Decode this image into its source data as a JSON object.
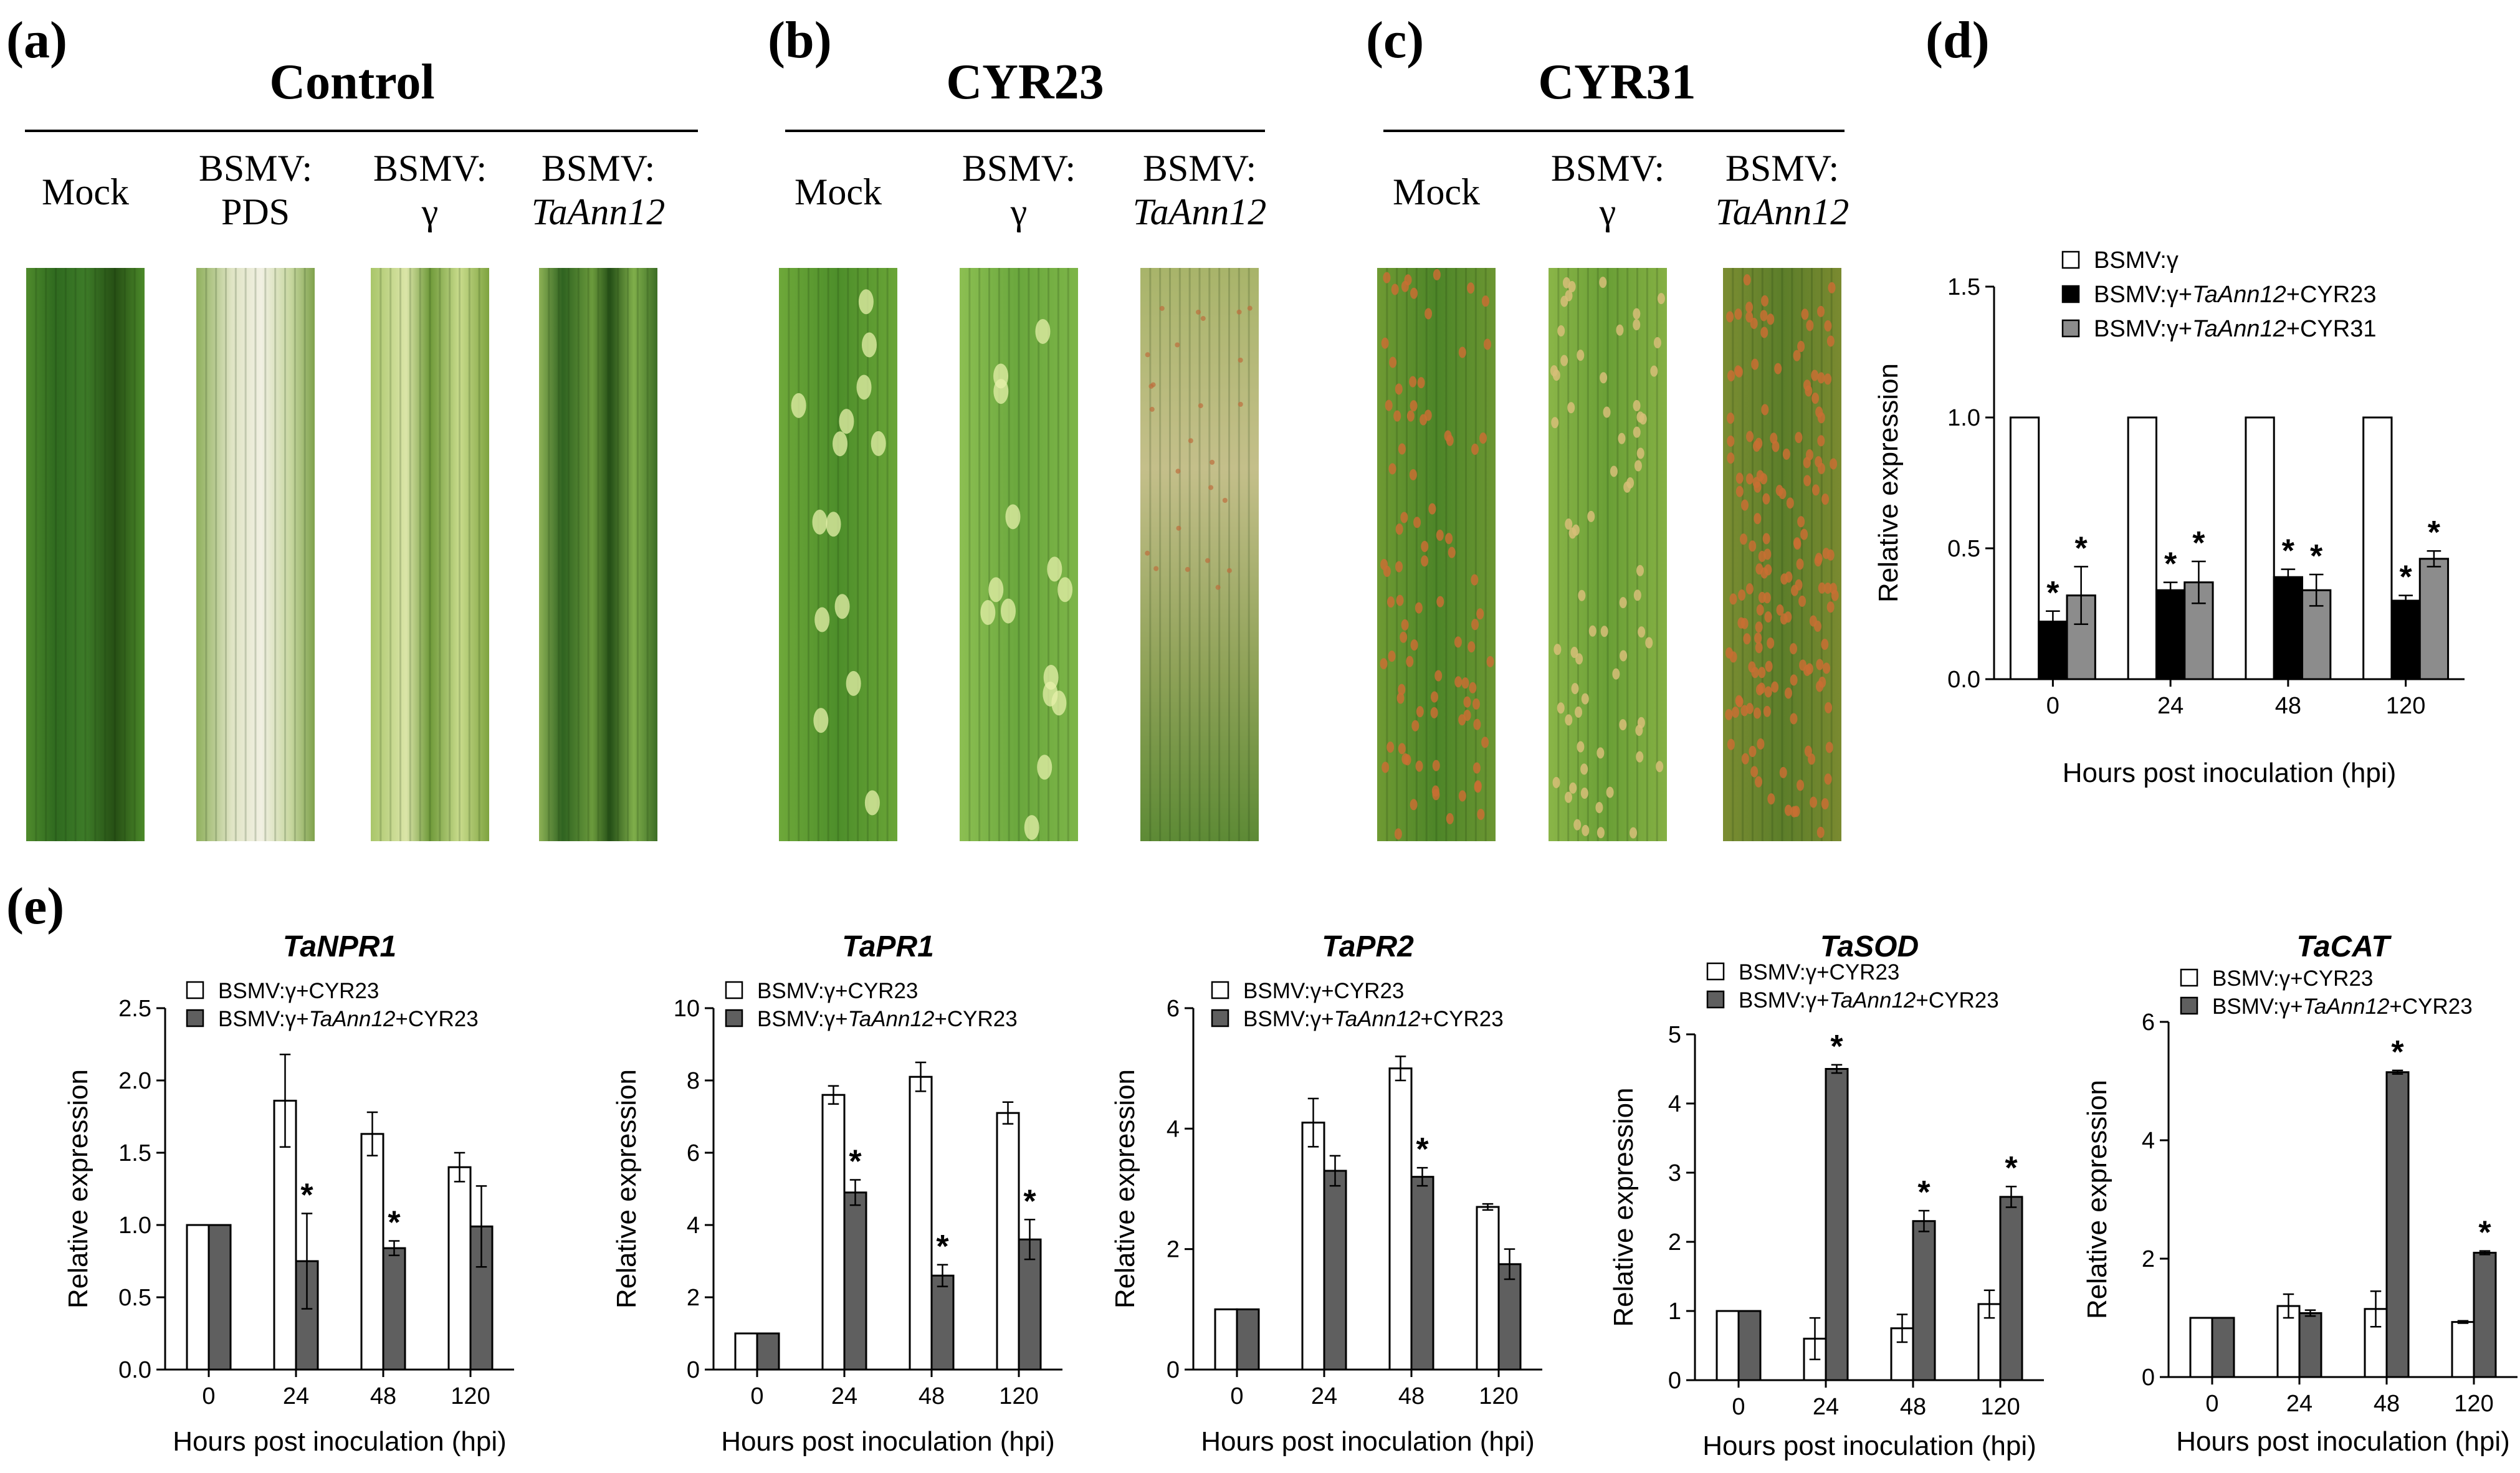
{
  "panel_labels": [
    "(a)",
    "(b)",
    "(c)",
    "(d)",
    "(e)"
  ],
  "colors": {
    "white_bar": "#ffffff",
    "black_bar": "#000000",
    "gray_bar": "#8c8c8c",
    "dark_gray_bar": "#5f5f5f",
    "leaf_green": "#3f8a2a",
    "rust_orange": "#c0692e"
  },
  "leaf_panels": [
    {
      "id": "a",
      "title": "Control",
      "columns": [
        {
          "label_lines": [
            "Mock"
          ],
          "italic_line": null,
          "leaf_style": "dark-green"
        },
        {
          "label_lines": [
            "BSMV:",
            "PDS"
          ],
          "italic_line": null,
          "leaf_style": "bleached"
        },
        {
          "label_lines": [
            "BSMV:",
            "γ"
          ],
          "italic_line": null,
          "leaf_style": "mosaic"
        },
        {
          "label_lines": [
            "BSMV:"
          ],
          "italic_line": "TaAnn12",
          "leaf_style": "striped"
        }
      ]
    },
    {
      "id": "b",
      "title": "CYR23",
      "columns": [
        {
          "label_lines": [
            "Mock"
          ],
          "italic_line": null,
          "leaf_style": "flecked"
        },
        {
          "label_lines": [
            "BSMV:",
            "γ"
          ],
          "italic_line": null,
          "leaf_style": "flecked-light"
        },
        {
          "label_lines": [
            "BSMV:"
          ],
          "italic_line": "TaAnn12",
          "leaf_style": "necrotic"
        }
      ]
    },
    {
      "id": "c",
      "title": "CYR31",
      "columns": [
        {
          "label_lines": [
            "Mock"
          ],
          "italic_line": null,
          "leaf_style": "rust"
        },
        {
          "label_lines": [
            "BSMV:",
            "γ"
          ],
          "italic_line": null,
          "leaf_style": "rust-light"
        },
        {
          "label_lines": [
            "BSMV:"
          ],
          "italic_line": "TaAnn12",
          "leaf_style": "rust-heavy"
        }
      ]
    }
  ],
  "chart_data": [
    {
      "id": "d",
      "type": "bar",
      "title": "",
      "categories": [
        "0",
        "24",
        "48",
        "120"
      ],
      "xlabel": "Hours post inoculation (hpi)",
      "ylabel": "Relative expression",
      "ylim": [
        0,
        1.5
      ],
      "yticks": [
        "0.0",
        "0.5",
        "1.0",
        "1.5"
      ],
      "series": [
        {
          "name_parts": [
            "BSMV:γ"
          ],
          "style": "white",
          "values": [
            1,
            1,
            1,
            1
          ],
          "errors": [
            0,
            0,
            0,
            0
          ],
          "stars": [
            false,
            false,
            false,
            false
          ]
        },
        {
          "name_parts": [
            "BSMV:γ+",
            "TaAnn12",
            "+CYR23"
          ],
          "style": "black",
          "values": [
            0.22,
            0.34,
            0.39,
            0.3
          ],
          "errors": [
            0.04,
            0.03,
            0.03,
            0.02
          ],
          "stars": [
            true,
            true,
            true,
            true
          ]
        },
        {
          "name_parts": [
            "BSMV:γ+",
            "TaAnn12",
            "+CYR31"
          ],
          "style": "gray",
          "values": [
            0.32,
            0.37,
            0.34,
            0.46
          ],
          "errors": [
            0.11,
            0.08,
            0.06,
            0.03
          ],
          "stars": [
            true,
            true,
            true,
            true
          ]
        }
      ]
    },
    {
      "id": "e1",
      "type": "bar",
      "title": "TaNPR1",
      "categories": [
        "0",
        "24",
        "48",
        "120"
      ],
      "xlabel": "Hours post inoculation (hpi)",
      "ylabel": "Relative expression",
      "ylim": [
        0,
        2.5
      ],
      "yticks": [
        "0.0",
        "0.5",
        "1.0",
        "1.5",
        "2.0",
        "2.5"
      ],
      "series": [
        {
          "name_parts": [
            "BSMV:γ+CYR23"
          ],
          "style": "white",
          "values": [
            1.0,
            1.86,
            1.63,
            1.4
          ],
          "errors": [
            0,
            0.32,
            0.15,
            0.1
          ],
          "stars": [
            false,
            false,
            false,
            false
          ]
        },
        {
          "name_parts": [
            "BSMV:γ+",
            "TaAnn12",
            "+CYR23"
          ],
          "style": "darkgray",
          "values": [
            1.0,
            0.75,
            0.84,
            0.99
          ],
          "errors": [
            0,
            0.33,
            0.05,
            0.28
          ],
          "stars": [
            false,
            true,
            true,
            false
          ]
        }
      ]
    },
    {
      "id": "e2",
      "type": "bar",
      "title": "TaPR1",
      "categories": [
        "0",
        "24",
        "48",
        "120"
      ],
      "xlabel": "Hours post inoculation (hpi)",
      "ylabel": "Relative expression",
      "ylim": [
        0,
        10
      ],
      "yticks": [
        "0",
        "2",
        "4",
        "6",
        "8",
        "10"
      ],
      "series": [
        {
          "name_parts": [
            "BSMV:γ+CYR23"
          ],
          "style": "white",
          "values": [
            1.0,
            7.6,
            8.1,
            7.1
          ],
          "errors": [
            0,
            0.25,
            0.4,
            0.3
          ],
          "stars": [
            false,
            false,
            false,
            false
          ]
        },
        {
          "name_parts": [
            "BSMV:γ+",
            "TaAnn12",
            "+CYR23"
          ],
          "style": "darkgray",
          "values": [
            1.0,
            4.9,
            2.6,
            3.6
          ],
          "errors": [
            0,
            0.35,
            0.3,
            0.55
          ],
          "stars": [
            false,
            true,
            true,
            true
          ]
        }
      ]
    },
    {
      "id": "e3",
      "type": "bar",
      "title": "TaPR2",
      "categories": [
        "0",
        "24",
        "48",
        "120"
      ],
      "xlabel": "Hours post inoculation (hpi)",
      "ylabel": "Relative expression",
      "ylim": [
        0,
        6
      ],
      "yticks": [
        "0",
        "2",
        "4",
        "6"
      ],
      "series": [
        {
          "name_parts": [
            "BSMV:γ+CYR23"
          ],
          "style": "white",
          "values": [
            1.0,
            4.1,
            5.0,
            2.7
          ],
          "errors": [
            0,
            0.4,
            0.2,
            0.05
          ],
          "stars": [
            false,
            false,
            false,
            false
          ]
        },
        {
          "name_parts": [
            "BSMV:γ+",
            "TaAnn12",
            "+CYR23"
          ],
          "style": "darkgray",
          "values": [
            1.0,
            3.3,
            3.2,
            1.75
          ],
          "errors": [
            0,
            0.25,
            0.15,
            0.25
          ],
          "stars": [
            false,
            false,
            true,
            false
          ]
        }
      ]
    },
    {
      "id": "e4",
      "type": "bar",
      "title": "TaSOD",
      "categories": [
        "0",
        "24",
        "48",
        "120"
      ],
      "xlabel": "Hours post inoculation (hpi)",
      "ylabel": "Relative expression",
      "ylim": [
        0,
        5
      ],
      "yticks": [
        "0",
        "1",
        "2",
        "3",
        "4",
        "5"
      ],
      "series": [
        {
          "name_parts": [
            "BSMV:γ+CYR23"
          ],
          "style": "white",
          "values": [
            1.0,
            0.6,
            0.75,
            1.1
          ],
          "errors": [
            0,
            0.3,
            0.2,
            0.2
          ],
          "stars": [
            false,
            false,
            false,
            false
          ]
        },
        {
          "name_parts": [
            "BSMV:γ+",
            "TaAnn12",
            "+CYR23"
          ],
          "style": "darkgray",
          "values": [
            1.0,
            4.5,
            2.3,
            2.65
          ],
          "errors": [
            0,
            0.06,
            0.15,
            0.15
          ],
          "stars": [
            false,
            true,
            true,
            true
          ]
        }
      ]
    },
    {
      "id": "e5",
      "type": "bar",
      "title": "TaCAT",
      "categories": [
        "0",
        "24",
        "48",
        "120"
      ],
      "xlabel": "Hours post inoculation (hpi)",
      "ylabel": "Relative expression",
      "ylim": [
        0,
        6
      ],
      "yticks": [
        "0",
        "2",
        "4",
        "6"
      ],
      "series": [
        {
          "name_parts": [
            "BSMV:γ+CYR23"
          ],
          "style": "white",
          "values": [
            1.0,
            1.2,
            1.15,
            0.93
          ],
          "errors": [
            0,
            0.2,
            0.3,
            0.02
          ],
          "stars": [
            false,
            false,
            false,
            false
          ]
        },
        {
          "name_parts": [
            "BSMV:γ+",
            "TaAnn12",
            "+CYR23"
          ],
          "style": "darkgray",
          "values": [
            1.0,
            1.08,
            5.15,
            2.1
          ],
          "errors": [
            0,
            0.05,
            0.03,
            0.03
          ],
          "stars": [
            false,
            false,
            true,
            true
          ]
        }
      ]
    }
  ]
}
